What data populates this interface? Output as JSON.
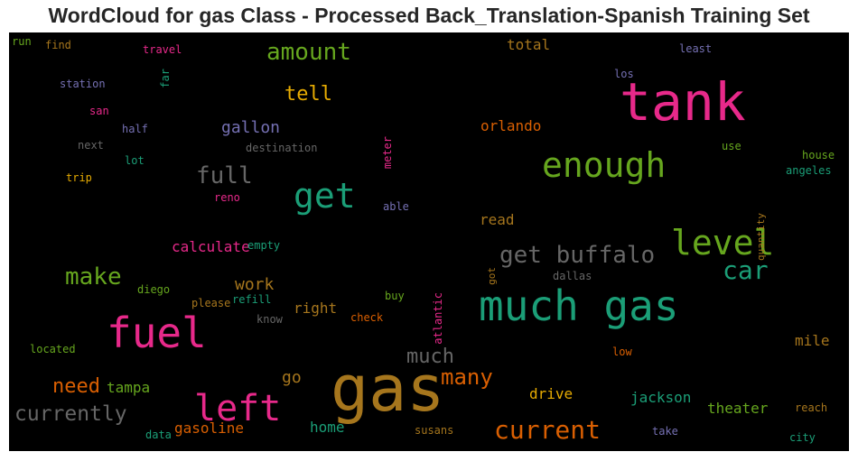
{
  "chart_data": {
    "type": "wordcloud",
    "title": "WordCloud for gas Class - Processed Back_Translation-Spanish Training Set",
    "background": "#000000",
    "words": [
      {
        "text": "gas",
        "color": "#a6761d"
      },
      {
        "text": "much gas",
        "color": "#1b9e77"
      },
      {
        "text": "tank",
        "color": "#e7298a"
      },
      {
        "text": "fuel",
        "color": "#e7298a"
      },
      {
        "text": "left",
        "color": "#e7298a"
      },
      {
        "text": "enough",
        "color": "#66a61e"
      },
      {
        "text": "level",
        "color": "#66a61e"
      },
      {
        "text": "get",
        "color": "#1b9e77"
      },
      {
        "text": "get buffalo",
        "color": "#666666"
      },
      {
        "text": "current",
        "color": "#d95f02"
      },
      {
        "text": "full",
        "color": "#666666"
      },
      {
        "text": "car",
        "color": "#1b9e77"
      },
      {
        "text": "make",
        "color": "#66a61e"
      },
      {
        "text": "currently",
        "color": "#666666"
      },
      {
        "text": "amount",
        "color": "#66a61e"
      },
      {
        "text": "much",
        "color": "#666666"
      },
      {
        "text": "many",
        "color": "#d95f02"
      },
      {
        "text": "need",
        "color": "#d95f02"
      },
      {
        "text": "tell",
        "color": "#e6ab02"
      },
      {
        "text": "gallon",
        "color": "#7570b3"
      },
      {
        "text": "work",
        "color": "#a6761d"
      },
      {
        "text": "calculate",
        "color": "#e7298a"
      },
      {
        "text": "jackson",
        "color": "#1b9e77"
      },
      {
        "text": "theater",
        "color": "#66a61e"
      },
      {
        "text": "mile",
        "color": "#a6761d"
      },
      {
        "text": "gasoline",
        "color": "#d95f02"
      },
      {
        "text": "orlando",
        "color": "#d95f02"
      },
      {
        "text": "drive",
        "color": "#e6ab02"
      },
      {
        "text": "tampa",
        "color": "#66a61e"
      },
      {
        "text": "go",
        "color": "#a6761d"
      },
      {
        "text": "home",
        "color": "#1b9e77"
      },
      {
        "text": "right",
        "color": "#a6761d"
      },
      {
        "text": "read",
        "color": "#a6761d"
      },
      {
        "text": "total",
        "color": "#a6761d"
      },
      {
        "text": "los",
        "color": "#7570b3"
      },
      {
        "text": "least",
        "color": "#7570b3"
      },
      {
        "text": "use",
        "color": "#66a61e"
      },
      {
        "text": "house",
        "color": "#66a61e"
      },
      {
        "text": "angeles",
        "color": "#1b9e77"
      },
      {
        "text": "quantity",
        "color": "#a6761d"
      },
      {
        "text": "dallas",
        "color": "#666666"
      },
      {
        "text": "got",
        "color": "#a6761d"
      },
      {
        "text": "atlantic",
        "color": "#e7298a"
      },
      {
        "text": "buy",
        "color": "#66a61e"
      },
      {
        "text": "check",
        "color": "#d95f02"
      },
      {
        "text": "low",
        "color": "#d95f02"
      },
      {
        "text": "reach",
        "color": "#a6761d"
      },
      {
        "text": "take",
        "color": "#7570b3"
      },
      {
        "text": "city",
        "color": "#1b9e77"
      },
      {
        "text": "susans",
        "color": "#a6761d"
      },
      {
        "text": "data",
        "color": "#1b9e77"
      },
      {
        "text": "located",
        "color": "#66a61e"
      },
      {
        "text": "know",
        "color": "#666666"
      },
      {
        "text": "please",
        "color": "#a6761d"
      },
      {
        "text": "refill",
        "color": "#1b9e77"
      },
      {
        "text": "diego",
        "color": "#66a61e"
      },
      {
        "text": "empty",
        "color": "#1b9e77"
      },
      {
        "text": "reno",
        "color": "#e7298a"
      },
      {
        "text": "able",
        "color": "#7570b3"
      },
      {
        "text": "destination",
        "color": "#666666"
      },
      {
        "text": "meter",
        "color": "#e7298a"
      },
      {
        "text": "trip",
        "color": "#e6ab02"
      },
      {
        "text": "lot",
        "color": "#1b9e77"
      },
      {
        "text": "next",
        "color": "#666666"
      },
      {
        "text": "half",
        "color": "#7570b3"
      },
      {
        "text": "san",
        "color": "#e7298a"
      },
      {
        "text": "station",
        "color": "#7570b3"
      },
      {
        "text": "far",
        "color": "#1b9e77"
      },
      {
        "text": "travel",
        "color": "#e7298a"
      },
      {
        "text": "find",
        "color": "#a6761d"
      },
      {
        "text": "run",
        "color": "#66a61e"
      }
    ]
  }
}
